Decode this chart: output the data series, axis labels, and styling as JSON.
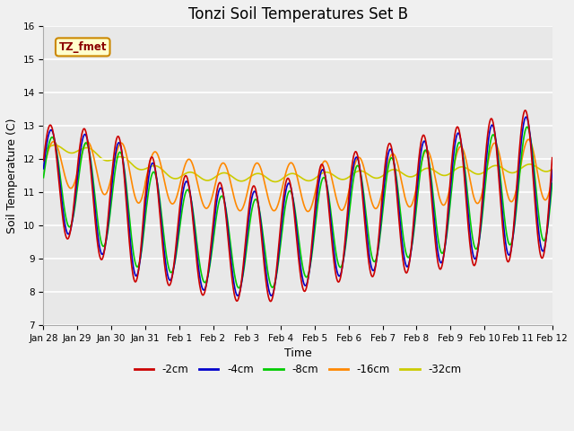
{
  "title": "Tonzi Soil Temperatures Set B",
  "xlabel": "Time",
  "ylabel": "Soil Temperature (C)",
  "ylim": [
    7.0,
    16.0
  ],
  "yticks": [
    7.0,
    8.0,
    9.0,
    10.0,
    11.0,
    12.0,
    13.0,
    14.0,
    15.0,
    16.0
  ],
  "xtick_labels": [
    "Jan 28",
    "Jan 29",
    "Jan 30",
    "Jan 31",
    "Feb 1",
    "Feb 2",
    "Feb 3",
    "Feb 4",
    "Feb 5",
    "Feb 6",
    "Feb 7",
    "Feb 8",
    "Feb 9",
    "Feb 10",
    "Feb 11",
    "Feb 12"
  ],
  "legend_label": "TZ_fmet",
  "series_labels": [
    "-2cm",
    "-4cm",
    "-8cm",
    "-16cm",
    "-32cm"
  ],
  "series_colors": [
    "#cc0000",
    "#0000cc",
    "#00cc00",
    "#ff8800",
    "#cccc00"
  ],
  "background_color": "#f0f0f0",
  "plot_bg_color": "#e8e8e8",
  "title_fontsize": 12,
  "axis_label_fontsize": 9,
  "tick_fontsize": 7.5,
  "legend_box_color": "#ffffcc",
  "legend_box_edge": "#cc8800"
}
